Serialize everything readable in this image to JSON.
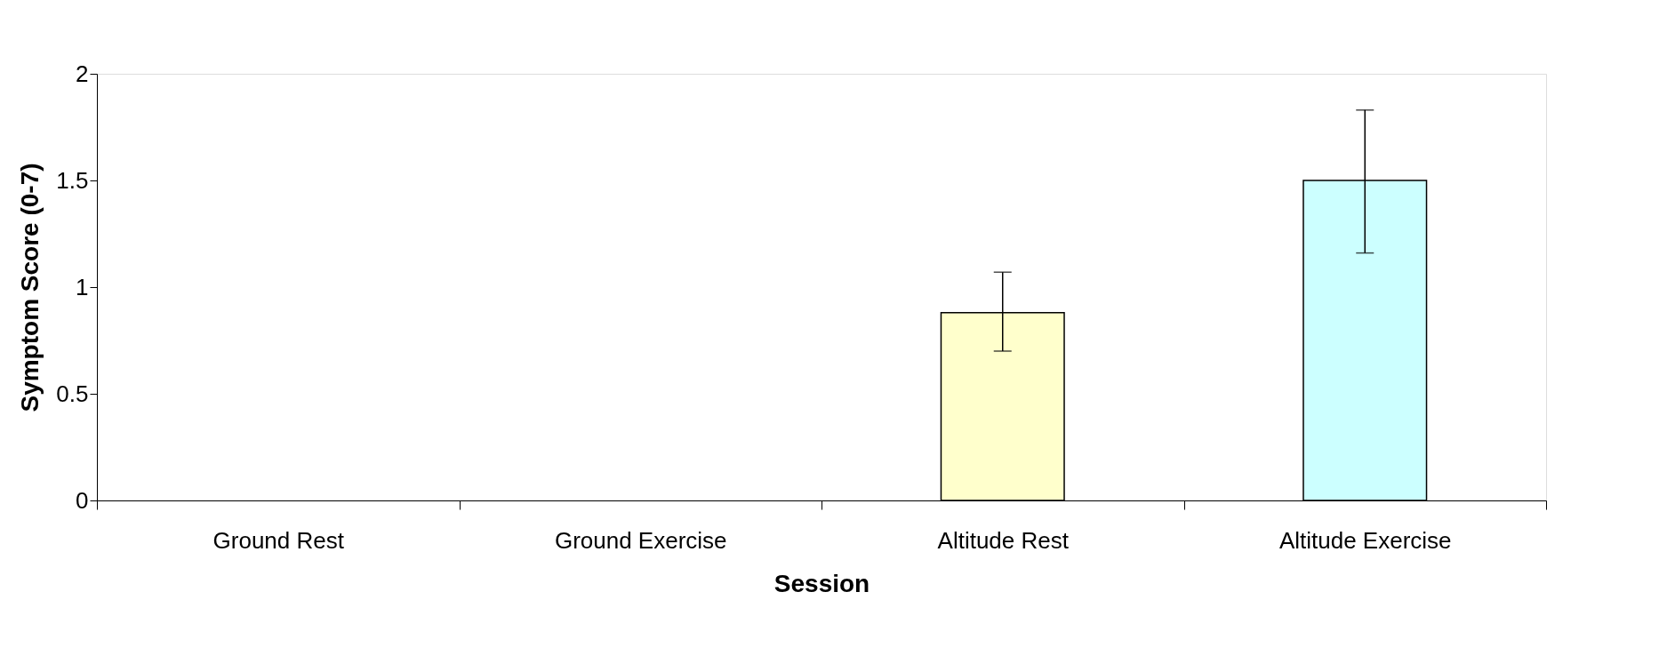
{
  "chart_data": {
    "type": "bar",
    "xlabel": "Session",
    "ylabel": "Symptom Score (0-7)",
    "categories": [
      "Ground Rest",
      "Ground Exercise",
      "Altitude Rest",
      "Altitude Exercise"
    ],
    "values": [
      null,
      null,
      0.88,
      1.5
    ],
    "colors": [
      "#ffffcc",
      "#ccffff",
      "#ffffcc",
      "#ccffff"
    ],
    "errors": [
      null,
      null,
      [
        0.7,
        1.07
      ],
      [
        1.16,
        1.83
      ]
    ],
    "ylim": [
      0,
      2
    ],
    "yticks": [
      0,
      0.5,
      1,
      1.5,
      2
    ],
    "grid": false
  }
}
